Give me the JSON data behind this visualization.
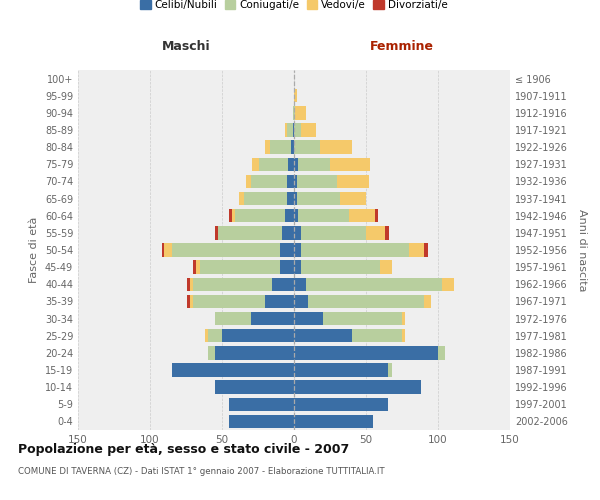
{
  "age_groups": [
    "0-4",
    "5-9",
    "10-14",
    "15-19",
    "20-24",
    "25-29",
    "30-34",
    "35-39",
    "40-44",
    "45-49",
    "50-54",
    "55-59",
    "60-64",
    "65-69",
    "70-74",
    "75-79",
    "80-84",
    "85-89",
    "90-94",
    "95-99",
    "100+"
  ],
  "birth_years": [
    "2002-2006",
    "1997-2001",
    "1992-1996",
    "1987-1991",
    "1982-1986",
    "1977-1981",
    "1972-1976",
    "1967-1971",
    "1962-1966",
    "1957-1961",
    "1952-1956",
    "1947-1951",
    "1942-1946",
    "1937-1941",
    "1932-1936",
    "1927-1931",
    "1922-1926",
    "1917-1921",
    "1912-1916",
    "1907-1911",
    "≤ 1906"
  ],
  "maschi": {
    "celibi": [
      45,
      45,
      55,
      85,
      55,
      50,
      30,
      20,
      15,
      10,
      10,
      8,
      6,
      5,
      5,
      4,
      2,
      1,
      0,
      0,
      0
    ],
    "coniugati": [
      0,
      0,
      0,
      0,
      5,
      10,
      25,
      50,
      55,
      55,
      75,
      45,
      35,
      30,
      25,
      20,
      15,
      4,
      1,
      0,
      0
    ],
    "vedovi": [
      0,
      0,
      0,
      0,
      0,
      2,
      0,
      2,
      2,
      3,
      5,
      0,
      2,
      3,
      3,
      5,
      3,
      1,
      0,
      0,
      0
    ],
    "divorziati": [
      0,
      0,
      0,
      0,
      0,
      0,
      0,
      2,
      2,
      2,
      2,
      2,
      2,
      0,
      0,
      0,
      0,
      0,
      0,
      0,
      0
    ]
  },
  "femmine": {
    "nubili": [
      55,
      65,
      88,
      65,
      100,
      40,
      20,
      10,
      8,
      5,
      5,
      5,
      3,
      2,
      2,
      3,
      0,
      0,
      0,
      0,
      0
    ],
    "coniugate": [
      0,
      0,
      0,
      3,
      5,
      35,
      55,
      80,
      95,
      55,
      75,
      45,
      35,
      30,
      28,
      22,
      18,
      5,
      1,
      0,
      0
    ],
    "vedove": [
      0,
      0,
      0,
      0,
      0,
      2,
      2,
      5,
      8,
      8,
      10,
      13,
      18,
      18,
      22,
      28,
      22,
      10,
      7,
      2,
      0
    ],
    "divorziate": [
      0,
      0,
      0,
      0,
      0,
      0,
      0,
      0,
      0,
      0,
      3,
      3,
      2,
      0,
      0,
      0,
      0,
      0,
      0,
      0,
      0
    ]
  },
  "colors": {
    "celibi": "#3a6ea5",
    "coniugati": "#b8cf9e",
    "vedovi": "#f5c96a",
    "divorziati": "#c0392b"
  },
  "xlim": 150,
  "bar_height": 0.78,
  "title": "Popolazione per età, sesso e stato civile - 2007",
  "subtitle": "COMUNE DI TAVERNA (CZ) - Dati ISTAT 1° gennaio 2007 - Elaborazione TUTTITALIA.IT",
  "ylabel_left": "Fasce di età",
  "ylabel_right": "Anni di nascita",
  "header_left": "Maschi",
  "header_right": "Femmine",
  "bg_color": "#efefef",
  "grid_color": "#cccccc",
  "legend_labels": [
    "Celibi/Nubili",
    "Coniugati/e",
    "Vedovi/e",
    "Divorziati/e"
  ]
}
